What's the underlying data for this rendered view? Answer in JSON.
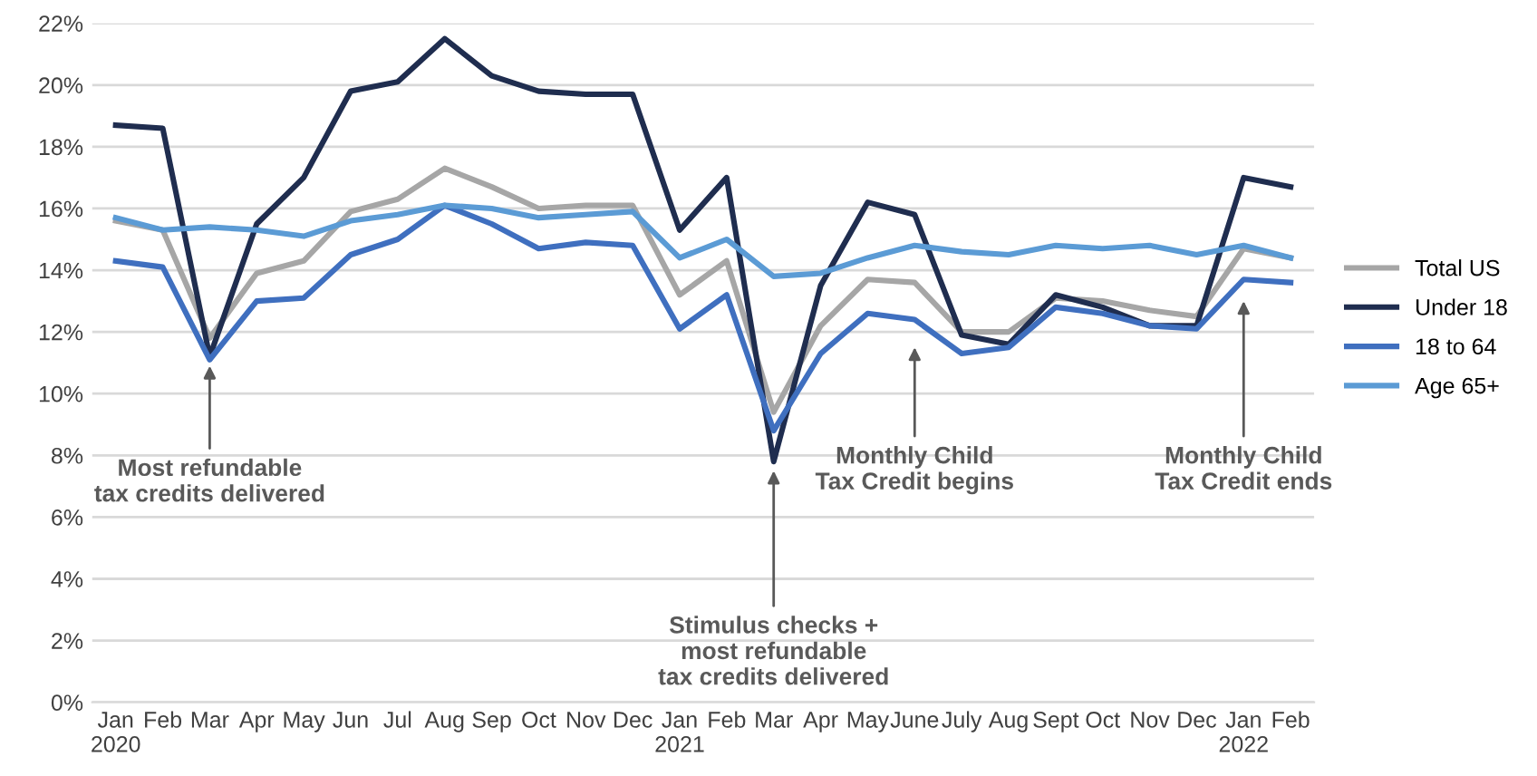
{
  "chart_data": {
    "type": "line",
    "categories": [
      "Jan\n2020",
      "Feb",
      "Mar",
      "Apr",
      "May",
      "Jun",
      "Jul",
      "Aug",
      "Sep",
      "Oct",
      "Nov",
      "Dec",
      "Jan\n2021",
      "Feb",
      "Mar",
      "Apr",
      "May",
      "June",
      "July",
      "Aug",
      "Sept",
      "Oct",
      "Nov",
      "Dec",
      "Jan\n2022",
      "Feb"
    ],
    "series": [
      {
        "name": "Total US",
        "color": "#a6a6a6",
        "values": [
          15.6,
          15.3,
          11.8,
          13.9,
          14.3,
          15.9,
          16.3,
          17.3,
          16.7,
          16.0,
          16.1,
          16.1,
          13.2,
          14.3,
          9.4,
          12.2,
          13.7,
          13.6,
          12.0,
          12.0,
          13.1,
          13.0,
          12.7,
          12.5,
          14.7,
          14.4
        ]
      },
      {
        "name": "Under 18",
        "color": "#1f2d4f",
        "values": [
          18.7,
          18.6,
          11.2,
          15.5,
          17.0,
          19.8,
          20.1,
          21.5,
          20.3,
          19.8,
          19.7,
          19.7,
          15.3,
          17.0,
          7.8,
          13.5,
          16.2,
          15.8,
          11.9,
          11.6,
          13.2,
          12.8,
          12.2,
          12.2,
          17.0,
          16.7
        ]
      },
      {
        "name": "18 to 64",
        "color": "#3f6fbf",
        "values": [
          14.3,
          14.1,
          11.1,
          13.0,
          13.1,
          14.5,
          15.0,
          16.1,
          15.5,
          14.7,
          14.9,
          14.8,
          12.1,
          13.2,
          8.8,
          11.3,
          12.6,
          12.4,
          11.3,
          11.5,
          12.8,
          12.6,
          12.2,
          12.1,
          13.7,
          13.6
        ]
      },
      {
        "name": "Age 65+",
        "color": "#5b9bd5",
        "values": [
          15.7,
          15.3,
          15.4,
          15.3,
          15.1,
          15.6,
          15.8,
          16.1,
          16.0,
          15.7,
          15.8,
          15.9,
          14.4,
          15.0,
          13.8,
          13.9,
          14.4,
          14.8,
          14.6,
          14.5,
          14.8,
          14.7,
          14.8,
          14.5,
          14.8,
          14.4
        ]
      }
    ],
    "ylim": [
      0,
      22
    ],
    "yticks": [
      {
        "value": 0,
        "label": "0%"
      },
      {
        "value": 2,
        "label": "2%"
      },
      {
        "value": 4,
        "label": "4%"
      },
      {
        "value": 6,
        "label": "6%"
      },
      {
        "value": 8,
        "label": "8%"
      },
      {
        "value": 10,
        "label": "10%"
      },
      {
        "value": 12,
        "label": "12%"
      },
      {
        "value": 14,
        "label": "14%"
      },
      {
        "value": 16,
        "label": "16%"
      },
      {
        "value": 18,
        "label": "18%"
      },
      {
        "value": 20,
        "label": "20%"
      },
      {
        "value": 22,
        "label": "22%"
      }
    ],
    "grid": "y",
    "legend": "right",
    "marker": "none",
    "line_style": "solid",
    "annotations": [
      {
        "text": "Most refundable\ntax credits delivered",
        "x": "Mar",
        "y": 10.9
      },
      "Stimulus checks +\nmost refundable\ntax credits delivered",
      "Monthly Child\nTax Credit begins",
      "Monthly Child\nTax Credit ends"
    ]
  }
}
